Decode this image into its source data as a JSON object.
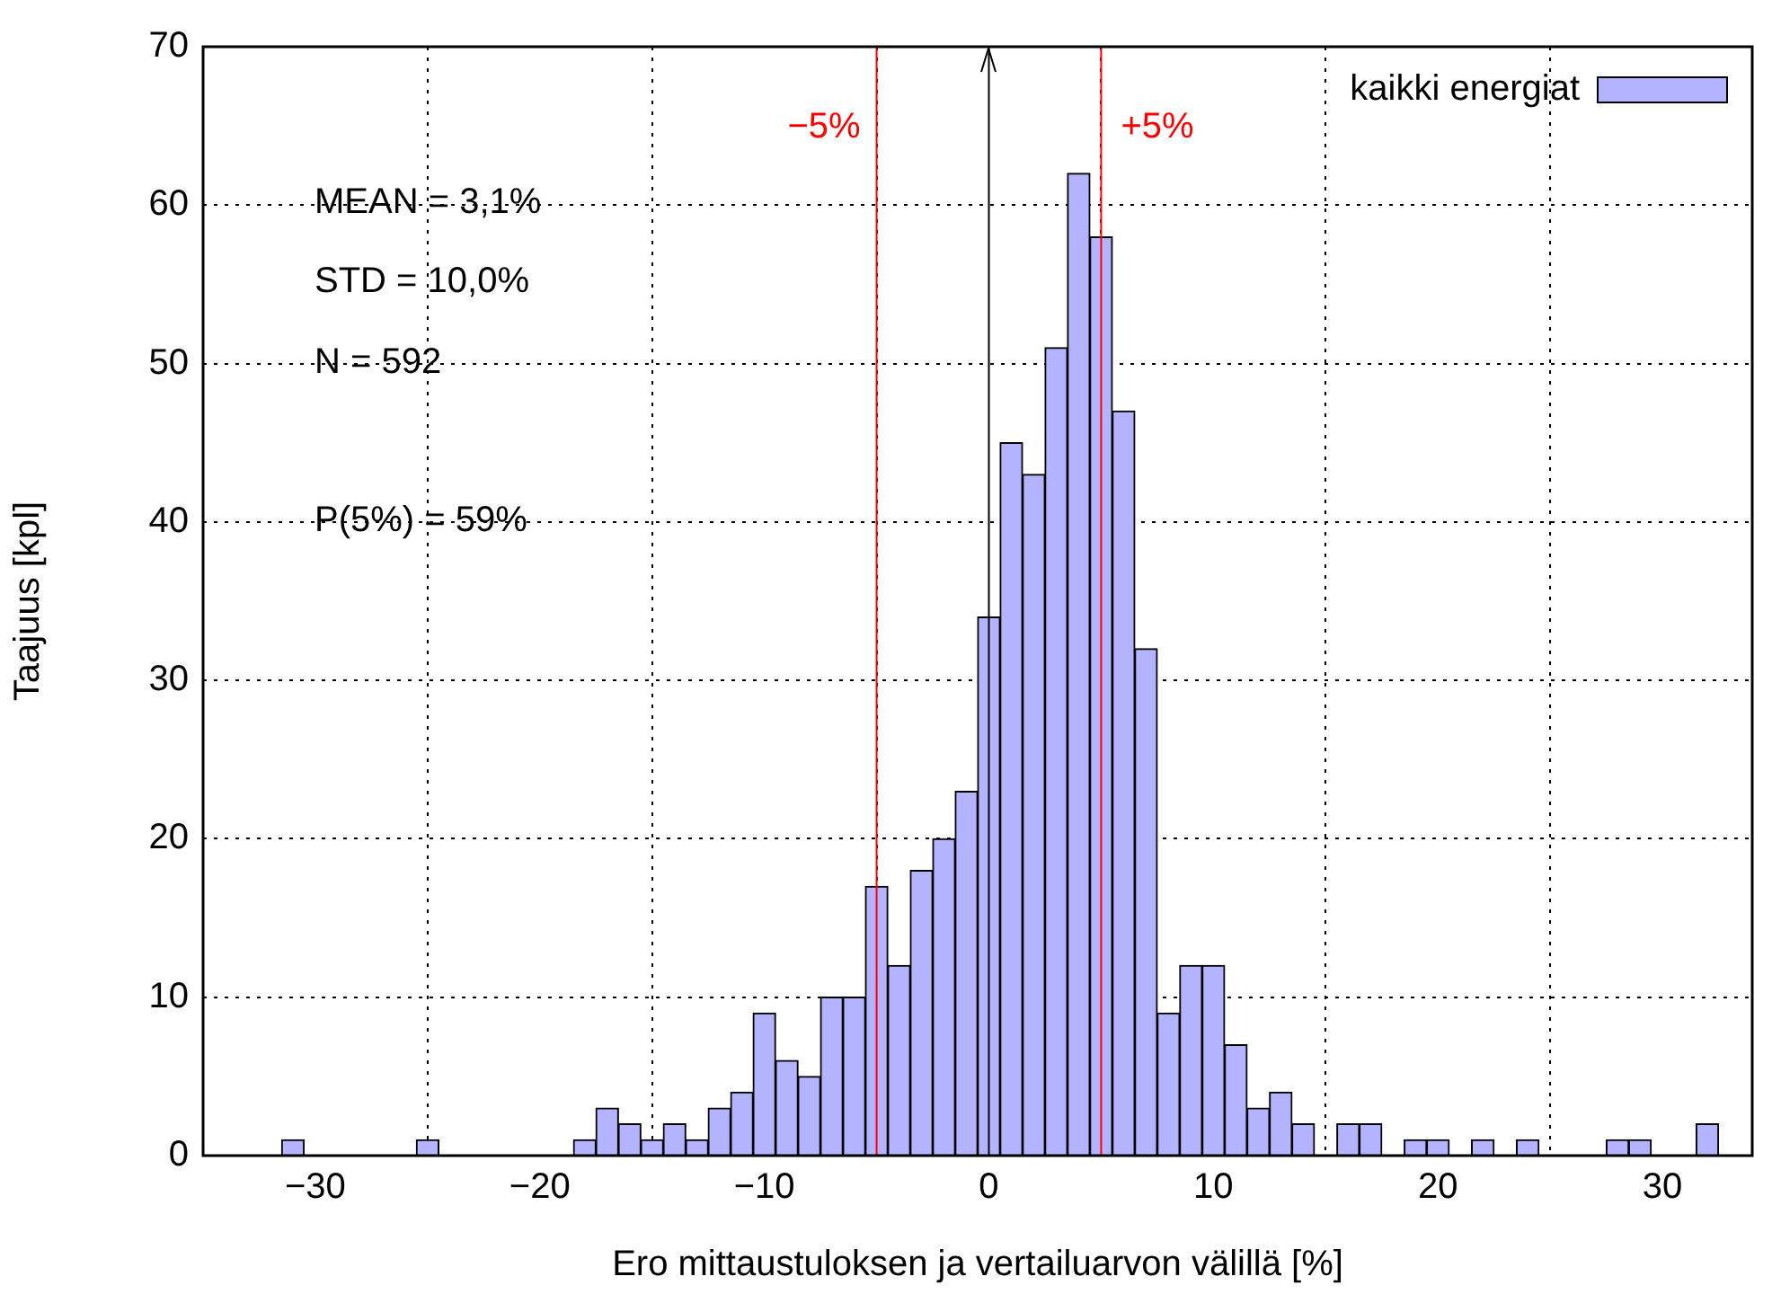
{
  "chart_data": {
    "type": "histogram",
    "xlabel": "Ero mittaustuloksen ja vertailuarvon välillä [%]",
    "ylabel": "Taajuus [kpl]",
    "bins": [
      -31.5,
      -30.5,
      -29.5,
      -28.5,
      -27.5,
      -26.5,
      -25.5,
      -24.5,
      -23.5,
      -22.5,
      -21.5,
      -20.5,
      -19.5,
      -18.5,
      -17.5,
      -16.5,
      -15.5,
      -14.5,
      -13.5,
      -12.5,
      -11.5,
      -10.5,
      -9.5,
      -8.5,
      -7.5,
      -6.5,
      -5.5,
      -4.5,
      -3.5,
      -2.5,
      -1.5,
      -0.5,
      0.5,
      1.5,
      2.5,
      3.5,
      4.5,
      5.5,
      6.5,
      7.5,
      8.5,
      9.5,
      10.5,
      11.5,
      12.5,
      13.5,
      14.5,
      15.5,
      16.5,
      17.5,
      18.5,
      19.5,
      20.5,
      21.5,
      22.5,
      23.5,
      24.5,
      25.5,
      26.5,
      27.5,
      28.5,
      29.5,
      30.5,
      31.5,
      32.5
    ],
    "series": [
      {
        "name": "kaikki energiat",
        "color": "#b3b3ff",
        "values": [
          1,
          0,
          0,
          0,
          0,
          0,
          1,
          0,
          0,
          0,
          0,
          0,
          0,
          1,
          3,
          2,
          1,
          2,
          1,
          3,
          4,
          9,
          6,
          5,
          10,
          10,
          17,
          12,
          18,
          20,
          23,
          34,
          45,
          43,
          51,
          62,
          58,
          47,
          32,
          9,
          12,
          12,
          7,
          3,
          4,
          2,
          0,
          2,
          2,
          0,
          1,
          1,
          0,
          1,
          0,
          1,
          0,
          0,
          0,
          1,
          1,
          0,
          0,
          2
        ]
      }
    ],
    "xlim": [
      -35,
      34
    ],
    "ylim": [
      0,
      70
    ],
    "xticks": [
      {
        "value": -30,
        "label": "−30"
      },
      {
        "value": -20,
        "label": "−20"
      },
      {
        "value": -10,
        "label": "−10"
      },
      0,
      10,
      20,
      30
    ],
    "yticks": [
      0,
      10,
      20,
      30,
      40,
      50,
      60,
      70
    ],
    "grid": true,
    "legend": "top right",
    "ref_lines": [
      {
        "axis": "x",
        "value": -5,
        "label": "−5%",
        "color": "#ff0000"
      },
      {
        "axis": "x",
        "value": 5,
        "label": "+5%",
        "color": "#ff0000"
      },
      {
        "axis": "x",
        "value": 0,
        "color": "#000000"
      }
    ],
    "annotations": [
      "MEAN = 3,1%",
      "STD = 10,0%",
      "N = 592",
      "P(5%) = 59%"
    ]
  }
}
